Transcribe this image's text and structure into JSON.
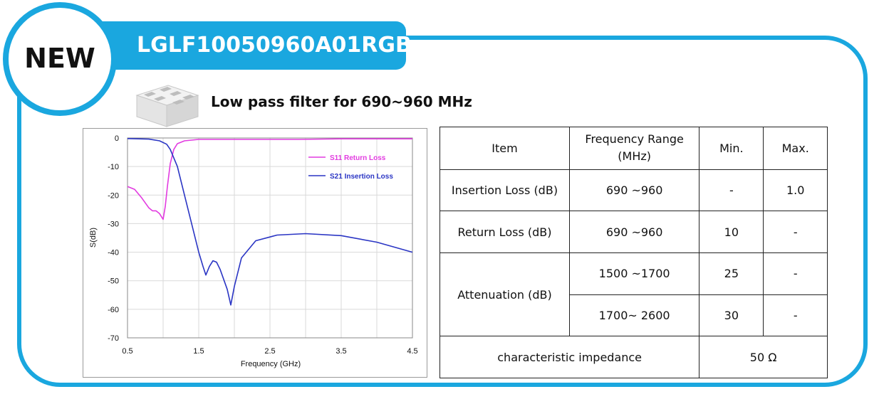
{
  "badge": "NEW",
  "part_number": "LGLF10050960A01RGB",
  "subtitle": "Low pass filter for  690~960 MHz",
  "chart_data": {
    "type": "line",
    "xlabel": "Frequency (GHz)",
    "ylabel": "S(dB)",
    "xlim": [
      0.5,
      4.5
    ],
    "ylim": [
      -70,
      0
    ],
    "x_ticks": [
      "0.5",
      "1.5",
      "2.5",
      "3.5",
      "4.5"
    ],
    "y_ticks": [
      "0",
      "-10",
      "-20",
      "-30",
      "-40",
      "-50",
      "-60",
      "-70"
    ],
    "grid": true,
    "legend_position": "top-right",
    "series": [
      {
        "name": "S11 Return Loss",
        "color": "#e23be0",
        "x": [
          0.5,
          0.6,
          0.7,
          0.8,
          0.85,
          0.9,
          0.95,
          1.0,
          1.03,
          1.06,
          1.1,
          1.15,
          1.2,
          1.3,
          1.5,
          2.0,
          2.9,
          3.5,
          4.5
        ],
        "y": [
          -17,
          -18,
          -21,
          -24.5,
          -25.5,
          -25.5,
          -26.5,
          -28.5,
          -24,
          -17,
          -9,
          -4,
          -2,
          -1,
          -0.5,
          -0.5,
          -0.5,
          -0.3,
          -0.3
        ]
      },
      {
        "name": "S21 Insertion Loss",
        "color": "#2a35c4",
        "x": [
          0.5,
          0.8,
          0.95,
          1.05,
          1.1,
          1.2,
          1.3,
          1.4,
          1.5,
          1.56,
          1.6,
          1.65,
          1.7,
          1.75,
          1.8,
          1.9,
          1.95,
          2.0,
          2.1,
          2.3,
          2.6,
          3.0,
          3.5,
          4.0,
          4.5
        ],
        "y": [
          -0.2,
          -0.4,
          -1,
          -2.2,
          -4,
          -10,
          -20,
          -30,
          -40,
          -45,
          -48,
          -45,
          -43,
          -43.5,
          -46,
          -53,
          -58.5,
          -52,
          -42,
          -36,
          -34,
          -33.5,
          -34.2,
          -36.5,
          -40
        ]
      }
    ]
  },
  "table": {
    "headers": [
      "Item",
      "Frequency Range (MHz)",
      "Min.",
      "Max."
    ],
    "rows": [
      {
        "item": "Insertion Loss (dB)",
        "range": "690 ~960",
        "min": "-",
        "max": "1.0"
      },
      {
        "item": "Return Loss (dB)",
        "range": "690 ~960",
        "min": "10",
        "max": "-"
      },
      {
        "item": "Attenuation (dB)",
        "range": "1500 ~1700",
        "min": "25",
        "max": "-"
      },
      {
        "item": "",
        "range": "1700~ 2600",
        "min": "30",
        "max": "-"
      }
    ],
    "impedance_label": "characteristic impedance",
    "impedance_value": "50 Ω"
  }
}
